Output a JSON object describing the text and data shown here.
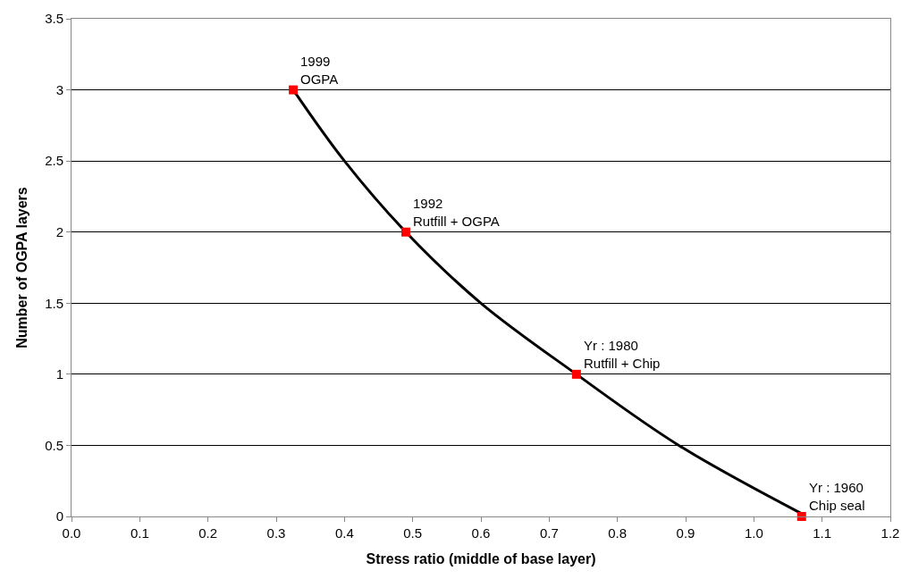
{
  "chart_data": {
    "type": "scatter",
    "xlabel": "Stress ratio (middle of base layer)",
    "ylabel": "Number of OGPA layers",
    "series": [
      {
        "type": "line",
        "color": "#000000",
        "marker": "none",
        "line_style": "solid",
        "x": [
          0.325,
          0.4,
          0.49,
          0.6,
          0.74,
          0.89,
          1.07
        ],
        "values": [
          3,
          2.5,
          2,
          1.5,
          1,
          0.5,
          0.02
        ]
      },
      {
        "color": "#ff0000",
        "marker": "square",
        "x": [
          0.325,
          0.49,
          0.74,
          1.07
        ],
        "values": [
          3,
          2,
          1,
          0
        ]
      }
    ],
    "annotations": [
      {
        "text": "1999\nOGPA",
        "x": 0.325,
        "y": 3
      },
      {
        "text": "1992\nRutfill + OGPA",
        "x": 0.49,
        "y": 2
      },
      {
        "text": "Yr : 1980\nRutfill + Chip",
        "x": 0.74,
        "y": 1
      },
      {
        "text": "Yr : 1960\nChip seal",
        "x": 1.07,
        "y": 0
      }
    ],
    "xlim": [
      0,
      1.2
    ],
    "ylim": [
      0,
      3.5
    ],
    "xticks": [
      {
        "value": 0,
        "label": "0.0"
      },
      0.1,
      0.2,
      0.3,
      0.4,
      0.5,
      0.6,
      0.7,
      0.8,
      0.9,
      {
        "value": 1,
        "label": "1.0"
      },
      1.1,
      1.2
    ],
    "yticks": [
      0,
      0.5,
      1,
      1.5,
      2,
      2.5,
      3,
      3.5
    ],
    "grid": "y"
  }
}
